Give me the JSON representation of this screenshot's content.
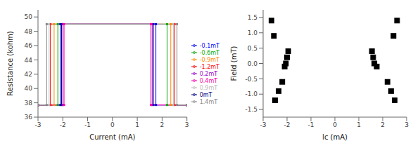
{
  "chart_data": [
    {
      "type": "line",
      "xlabel": "Current (mA)",
      "ylabel": "Resistance (kohm)",
      "xlim": [
        -3,
        3
      ],
      "ylim": [
        36,
        51
      ],
      "xticks": [
        -3,
        -2,
        -1,
        0,
        1,
        2,
        3
      ],
      "yticks": [
        36,
        38,
        40,
        42,
        44,
        46,
        48,
        50
      ],
      "grid": false,
      "legend": "right",
      "marker": "square",
      "series": [
        {
          "name": "-1.2mT",
          "color": "#FF0000",
          "x": [
            -3,
            -2.5,
            -2.5,
            2.5,
            2.5,
            3
          ],
          "values": [
            37.7,
            37.7,
            49.0,
            49.0,
            37.7,
            37.7
          ]
        },
        {
          "name": "-0.9mT",
          "color": "#FF8C00",
          "x": [
            -3,
            -2.35,
            -2.35,
            2.35,
            2.35,
            3
          ],
          "values": [
            37.7,
            37.7,
            49.0,
            49.0,
            37.7,
            37.7
          ]
        },
        {
          "name": "-0.6mT",
          "color": "#00AA00",
          "x": [
            -3,
            -2.2,
            -2.2,
            2.2,
            2.2,
            3
          ],
          "values": [
            37.7,
            37.7,
            49.0,
            49.0,
            37.7,
            37.7
          ]
        },
        {
          "name": "-0.1mT",
          "color": "#0000FF",
          "x": [
            -3,
            -2.1,
            -2.1,
            1.75,
            1.75,
            3
          ],
          "values": [
            37.7,
            37.7,
            49.0,
            49.0,
            37.7,
            37.7
          ]
        },
        {
          "name": "0mT",
          "color": "#000080",
          "x": [
            -3,
            -2.05,
            -2.05,
            1.65,
            1.65,
            3
          ],
          "values": [
            37.7,
            37.7,
            49.0,
            49.0,
            37.7,
            37.7
          ]
        },
        {
          "name": "0.2mT",
          "color": "#9900CC",
          "x": [
            -3,
            -2.0,
            -2.0,
            1.6,
            1.6,
            3
          ],
          "values": [
            37.7,
            37.7,
            49.0,
            49.0,
            37.7,
            37.7
          ]
        },
        {
          "name": "0.4mT",
          "color": "#FF00AA",
          "x": [
            -3,
            -1.95,
            -1.95,
            1.55,
            1.55,
            3
          ],
          "values": [
            37.7,
            37.7,
            49.0,
            49.0,
            37.7,
            37.7
          ]
        },
        {
          "name": "0.9mT",
          "color": "#BBBBBB",
          "x": [
            -3,
            -2.55,
            -2.55,
            2.45,
            2.45,
            3
          ],
          "values": [
            37.7,
            37.7,
            49.0,
            49.0,
            37.7,
            37.7
          ]
        },
        {
          "name": "1.4mT",
          "color": "#888888",
          "x": [
            -3,
            -2.65,
            -2.65,
            2.6,
            2.6,
            3
          ],
          "values": [
            37.7,
            37.7,
            49.0,
            49.0,
            37.7,
            37.7
          ]
        }
      ]
    },
    {
      "type": "scatter",
      "xlabel": "Ic (mA)",
      "ylabel": "Field (mT)",
      "xlim": [
        -3,
        3
      ],
      "ylim": [
        -1.75,
        1.75
      ],
      "xticks": [
        -3,
        -2,
        -1,
        0,
        1,
        2,
        3
      ],
      "yticks": [
        -1.5,
        {
          "value": -1.0,
          "label": "-1.0"
        },
        -0.5,
        {
          "value": 0.0,
          "label": "0.0"
        },
        0.5,
        {
          "value": 1.0,
          "label": "1.0"
        },
        1.5
      ],
      "grid": false,
      "color": "#000000",
      "marker": "square",
      "x": [
        -2.5,
        -2.35,
        -2.2,
        -2.1,
        -2.05,
        -2.0,
        -1.95,
        -2.55,
        -2.65,
        2.5,
        2.35,
        2.2,
        1.75,
        1.65,
        1.6,
        1.55,
        2.45,
        2.6
      ],
      "values": [
        -1.2,
        -0.9,
        -0.6,
        -0.1,
        0.0,
        0.2,
        0.4,
        0.9,
        1.4,
        -1.2,
        -0.9,
        -0.6,
        -0.1,
        0.0,
        0.2,
        0.4,
        0.9,
        1.4
      ]
    }
  ]
}
